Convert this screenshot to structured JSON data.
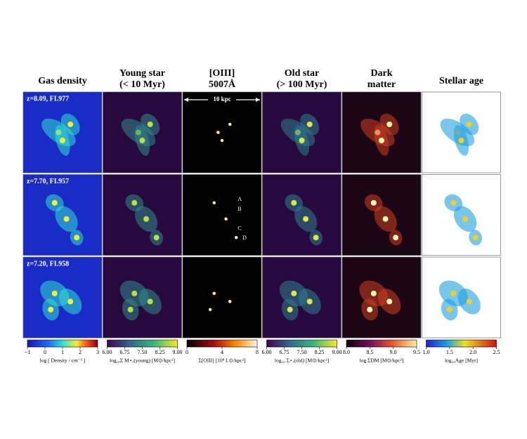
{
  "columns": [
    {
      "title_lines": [
        "Gas density"
      ]
    },
    {
      "title_lines": [
        "Young star",
        "(< 10 Myr)"
      ]
    },
    {
      "title_lines": [
        "[OIII]",
        "5007Å"
      ]
    },
    {
      "title_lines": [
        "Old star",
        "(> 100 Myr)"
      ]
    },
    {
      "title_lines": [
        "Dark",
        "matter"
      ]
    },
    {
      "title_lines": [
        "Stellar age"
      ]
    }
  ],
  "rows": [
    {
      "label": "z=8.09, FI.977"
    },
    {
      "label": "z=7.70, FI.957"
    },
    {
      "label": "z=7.20, FI.958"
    }
  ],
  "scale_bar": "10 kpc",
  "markers": [
    "A",
    "B",
    "C",
    "D"
  ],
  "colorbars": [
    {
      "ticks": [
        "−1",
        "0",
        "1",
        "2",
        "3"
      ],
      "label": "log [ Density / cm⁻³ ]"
    },
    {
      "ticks": [
        "6.00",
        "6.75",
        "7.50",
        "8.25",
        "9.00"
      ],
      "label": "log₁₀Σ M⋆,(young) [M⊙/kpc²]"
    },
    {
      "ticks": [
        "0",
        "4",
        "8"
      ],
      "label": "Σ[OIII] [10⁸ L⊙/kpc²]"
    },
    {
      "ticks": [
        "6.00",
        "6.75",
        "7.50",
        "8.25",
        "9.00"
      ],
      "label": "log₁₀ Σ⋆,(old) [M⊙/kpc²]"
    },
    {
      "ticks": [
        "8.0",
        "8.5",
        "9.0",
        "9.5"
      ],
      "label": "log ΣDM [M⊙/kpc²]"
    },
    {
      "ticks": [
        "1.0",
        "1.5",
        "2.0",
        "2.5"
      ],
      "label": "log₁₀Age [Myr]"
    }
  ]
}
